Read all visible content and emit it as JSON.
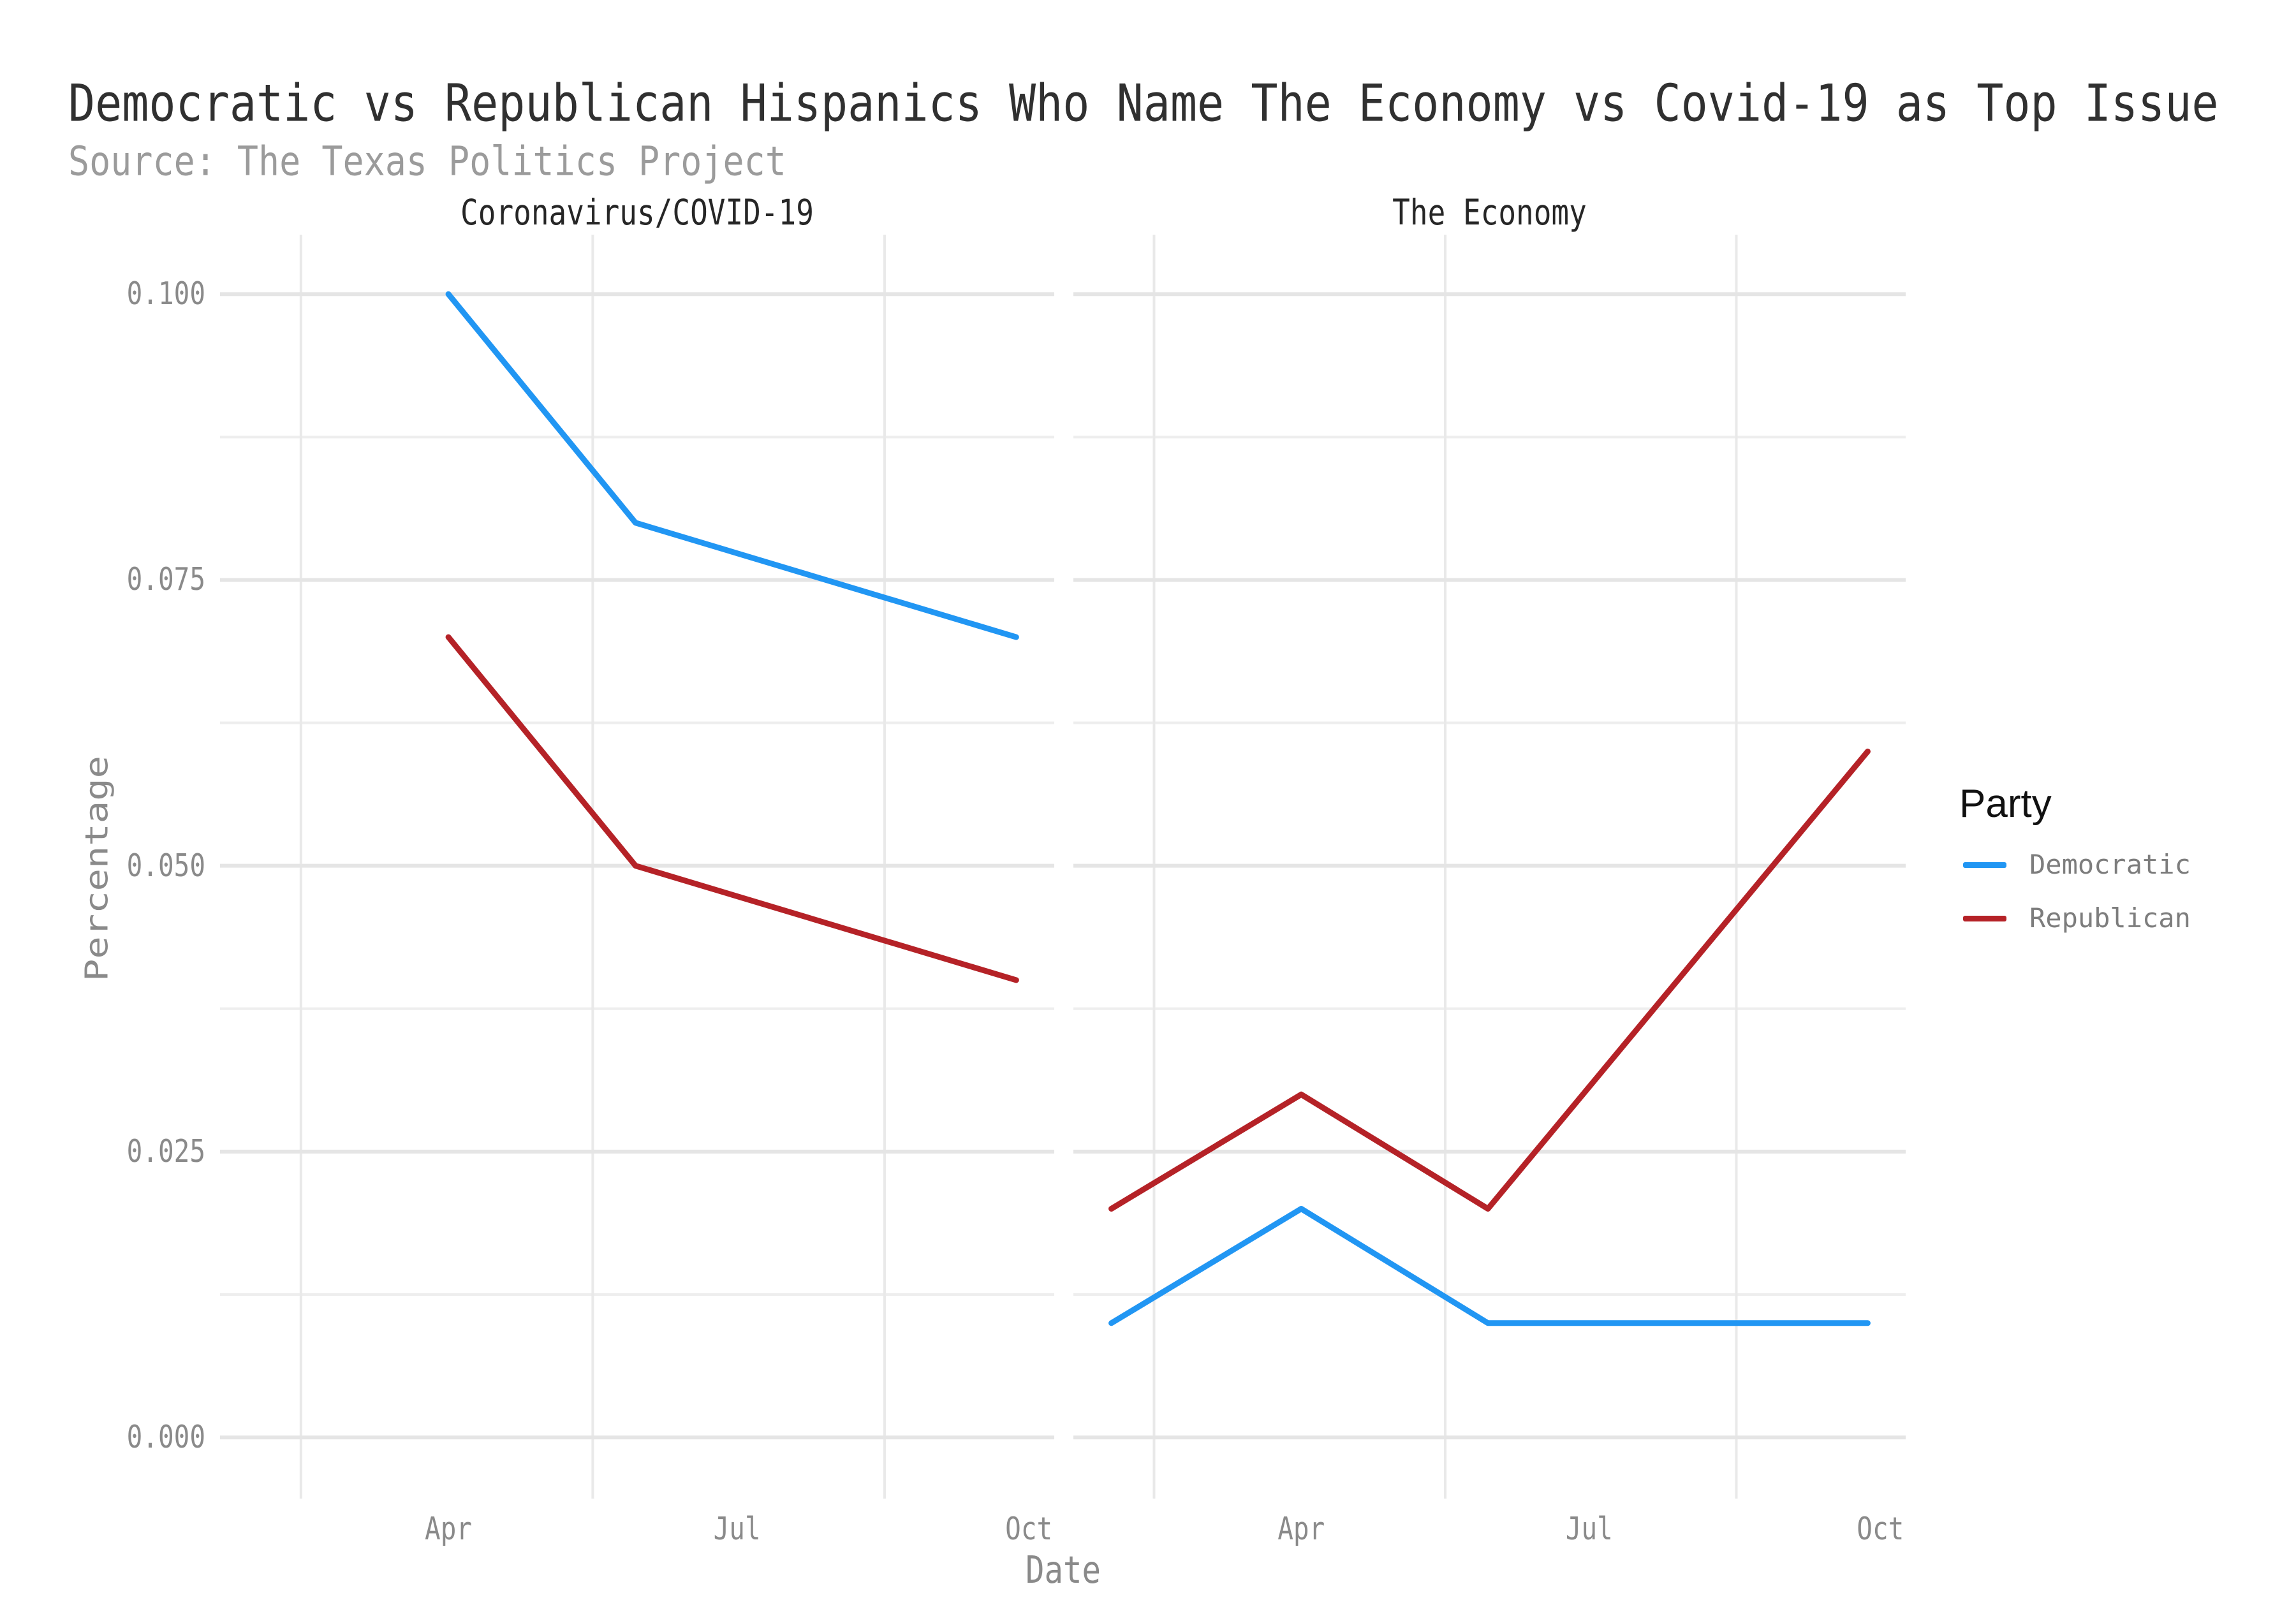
{
  "title": "Democratic vs Republican Hispanics Who Name The Economy vs Covid-19 as Top Issue",
  "subtitle": "Source: The Texas Politics Project",
  "legend": {
    "title": "Party",
    "items": [
      {
        "label": "Democratic",
        "color": "#2196F3"
      },
      {
        "label": "Republican",
        "color": "#B52227"
      }
    ]
  },
  "colors": {
    "background": "#ffffff",
    "grid_major": "#e5e5e5",
    "grid_minor": "#eeeeee",
    "grid_minor_vertical": "#e9e9e9",
    "title_text": "#303030",
    "subtitle_text": "#9b9b9b",
    "tick_text": "#8a8a8a",
    "democratic": "#2196F3",
    "republican": "#B52227"
  },
  "chart_data": {
    "type": "line",
    "title": "Democratic vs Republican Hispanics Who Name The Economy vs Covid-19 as Top Issue",
    "subtitle": "Source: The Texas Politics Project",
    "xlabel": "Date",
    "ylabel": "Percentage",
    "ylim": [
      0,
      0.1
    ],
    "grid": "white background, light-gray major+minor horizontal gridlines, minor vertical gridlines only, no axis lines, no tick marks",
    "legend_position": "right",
    "legend_title": "Party",
    "y_ticks": [
      {
        "label": "0.100",
        "value": 0.1
      },
      {
        "label": "0.075",
        "value": 0.075
      },
      {
        "label": "0.050",
        "value": 0.05
      },
      {
        "label": "0.025",
        "value": 0.025
      },
      {
        "label": "0.000",
        "value": 0.0
      }
    ],
    "y_minor": [
      0.0875,
      0.0625,
      0.0375,
      0.0125
    ],
    "x_ticks": [
      {
        "label": "Apr",
        "day": 91
      },
      {
        "label": "Jul",
        "day": 182
      },
      {
        "label": "Oct",
        "day": 274
      }
    ],
    "x_minor_days": [
      44.5,
      136.5,
      228.5
    ],
    "x_unit": "day-of-year 2020",
    "facets": [
      {
        "title": "Coronavirus/COVID-19",
        "series": [
          {
            "name": "Democratic",
            "color": "#2196F3",
            "dates": [
              "2020-04-01",
              "2020-05-30",
              "2020-09-27"
            ],
            "days": [
              91,
              150,
              270
            ],
            "values": [
              0.1,
              0.08,
              0.07
            ]
          },
          {
            "name": "Republican",
            "color": "#B52227",
            "dates": [
              "2020-04-01",
              "2020-05-30",
              "2020-09-27"
            ],
            "days": [
              91,
              150,
              270
            ],
            "values": [
              0.07,
              0.05,
              0.04
            ]
          }
        ]
      },
      {
        "title": "The Economy",
        "series": [
          {
            "name": "Democratic",
            "color": "#2196F3",
            "dates": [
              "2020-02-01",
              "2020-04-01",
              "2020-05-30",
              "2020-09-27"
            ],
            "days": [
              31,
              91,
              150,
              270
            ],
            "values": [
              0.01,
              0.02,
              0.01,
              0.01
            ]
          },
          {
            "name": "Republican",
            "color": "#B52227",
            "dates": [
              "2020-02-01",
              "2020-04-01",
              "2020-05-30",
              "2020-09-27"
            ],
            "days": [
              31,
              91,
              150,
              270
            ],
            "values": [
              0.02,
              0.03,
              0.02,
              0.06
            ]
          }
        ]
      }
    ]
  }
}
